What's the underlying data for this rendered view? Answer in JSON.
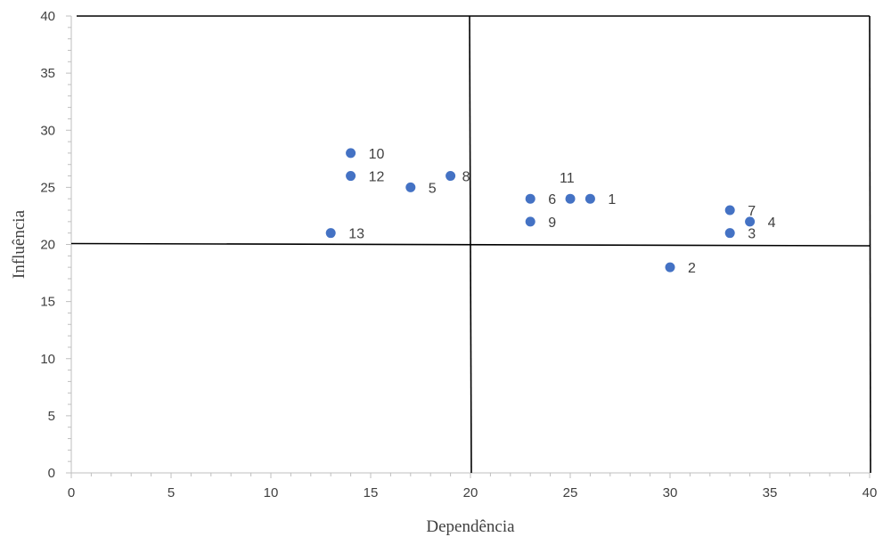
{
  "chart_data": {
    "type": "scatter",
    "xlabel": "Dependência",
    "ylabel": "Influência",
    "xlim": [
      0,
      40
    ],
    "ylim": [
      0,
      40
    ],
    "x_ticks": [
      "0",
      "5",
      "10",
      "15",
      "20",
      "25",
      "30",
      "35",
      "40"
    ],
    "y_ticks": [
      "0",
      "5",
      "10",
      "15",
      "20",
      "25",
      "30",
      "35",
      "40"
    ],
    "grid": false,
    "marker_color": "#4472c4",
    "line_color": "#000000",
    "quadrant_lines": {
      "x": 20,
      "y": 20
    },
    "points": [
      {
        "label": "1",
        "x": 26,
        "y": 24
      },
      {
        "label": "2",
        "x": 30,
        "y": 18
      },
      {
        "label": "3",
        "x": 33,
        "y": 21
      },
      {
        "label": "4",
        "x": 34,
        "y": 22
      },
      {
        "label": "5",
        "x": 17,
        "y": 25
      },
      {
        "label": "6",
        "x": 23,
        "y": 24
      },
      {
        "label": "7",
        "x": 33,
        "y": 23
      },
      {
        "label": "8",
        "x": 19,
        "y": 26
      },
      {
        "label": "9",
        "x": 23,
        "y": 22
      },
      {
        "label": "10",
        "x": 14,
        "y": 28
      },
      {
        "label": "11",
        "x": 25,
        "y": 24
      },
      {
        "label": "12",
        "x": 14,
        "y": 26
      },
      {
        "label": "13",
        "x": 13,
        "y": 21
      }
    ]
  }
}
